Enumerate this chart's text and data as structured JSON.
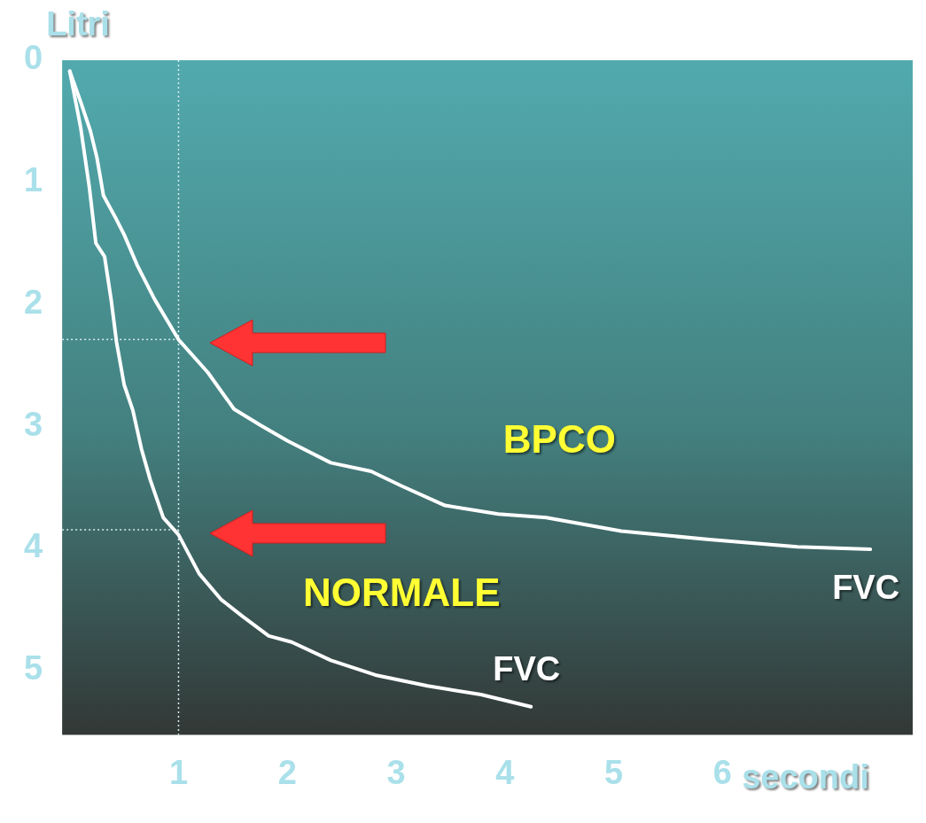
{
  "chart_data": {
    "type": "line",
    "xlabel": "secondi",
    "ylabel": "Litri",
    "xlim": [
      -0.07,
      7.75
    ],
    "ylim": [
      5.53,
      0
    ],
    "xticks": [
      1,
      2,
      3,
      4,
      5,
      6
    ],
    "yticks": [
      0,
      1,
      2,
      3,
      4,
      5
    ],
    "grid": false,
    "legend": false,
    "marker": "none",
    "line_style": "solid",
    "series": [
      {
        "name": "BPCO",
        "color": "#ffffff",
        "x": [
          0,
          0.1,
          0.19,
          0.25,
          0.31,
          0.42,
          0.5,
          0.62,
          0.78,
          1,
          1.27,
          1.51,
          1.75,
          2,
          2.4,
          2.77,
          3.05,
          3.45,
          3.94,
          4.38,
          5.07,
          5.88,
          6.69,
          7.36
        ],
        "values": [
          0.09,
          0.34,
          0.58,
          0.8,
          1.11,
          1.29,
          1.43,
          1.68,
          1.96,
          2.29,
          2.56,
          2.86,
          2.99,
          3.12,
          3.3,
          3.37,
          3.49,
          3.65,
          3.72,
          3.75,
          3.86,
          3.93,
          3.99,
          4.01
        ]
      },
      {
        "name": "NORMALE",
        "color": "#ffffff",
        "x": [
          0,
          0.1,
          0.18,
          0.24,
          0.32,
          0.38,
          0.43,
          0.5,
          0.58,
          0.66,
          0.74,
          0.86,
          1,
          1.19,
          1.39,
          1.59,
          1.83,
          2.04,
          2.4,
          2.81,
          3.29,
          3.78,
          4.24
        ],
        "values": [
          0.09,
          0.55,
          1.04,
          1.5,
          1.61,
          1.96,
          2.31,
          2.66,
          2.87,
          3.19,
          3.44,
          3.75,
          3.89,
          4.21,
          4.42,
          4.56,
          4.72,
          4.77,
          4.92,
          5.04,
          5.13,
          5.2,
          5.3
        ]
      }
    ],
    "ref_lines": [
      {
        "axis": "x",
        "value": 1,
        "color": "#d8eef0",
        "line_style": "dotted"
      },
      {
        "axis": "y",
        "value": 2.29,
        "color": "#d8eef0",
        "line_style": "dotted"
      },
      {
        "axis": "y",
        "value": 3.85,
        "color": "#d8eef0",
        "line_style": "dotted"
      }
    ],
    "annotations": [
      {
        "text": "FVC",
        "x": 4.24,
        "y": 5.3
      },
      {
        "text": "FVC",
        "x": 7.36,
        "y": 4.01
      }
    ]
  }
}
